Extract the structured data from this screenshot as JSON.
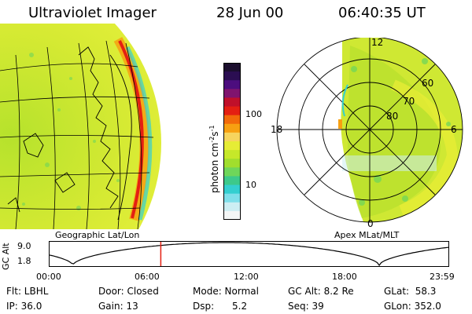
{
  "header": {
    "instrument": "Ultraviolet Imager",
    "date": "28 Jun 00",
    "time": "06:40:35 UT"
  },
  "colorbar": {
    "label": "photon cm",
    "label_exp1": "-2",
    "label_mid": "s",
    "label_exp2": "-1",
    "ticks": [
      "100",
      "10"
    ],
    "colors": [
      "#1b0f2e",
      "#2b0e52",
      "#4c0d7e",
      "#80146e",
      "#c0102a",
      "#e41f12",
      "#f26a0a",
      "#f7a011",
      "#f6d45e",
      "#e6ec35",
      "#c6e829",
      "#a1de2d",
      "#6fd65a",
      "#3dc98b",
      "#34cfd0",
      "#7fdfea",
      "#cdeef3",
      "#f4f6f6"
    ]
  },
  "panels": {
    "left_label": "Geographic Lat/Lon",
    "right_label": "Apex  MLat/MLT"
  },
  "polar": {
    "mlt_labels": [
      "12",
      "18",
      "6",
      "0"
    ],
    "lat_labels": [
      "60",
      "70",
      "80"
    ]
  },
  "altitude_plot": {
    "ylabel": "GC Alt",
    "yticks": [
      "9.0",
      "1.8"
    ],
    "xticks": [
      "00:00",
      "06:00",
      "12:00",
      "18:00",
      "23:59"
    ],
    "current_hour": 6.68
  },
  "info": {
    "filter": "Flt: LBHL",
    "door": "Door: Closed",
    "mode": "Mode: Normal",
    "gc_alt": "GC Alt: 8.2 Re",
    "glat": "GLat:  58.3",
    "ip": "IP: 36.0",
    "gain": "Gain: 13",
    "dsp": "Dsp:      5.2",
    "seq": "Seq: 39",
    "glon": "GLon: 352.0"
  }
}
